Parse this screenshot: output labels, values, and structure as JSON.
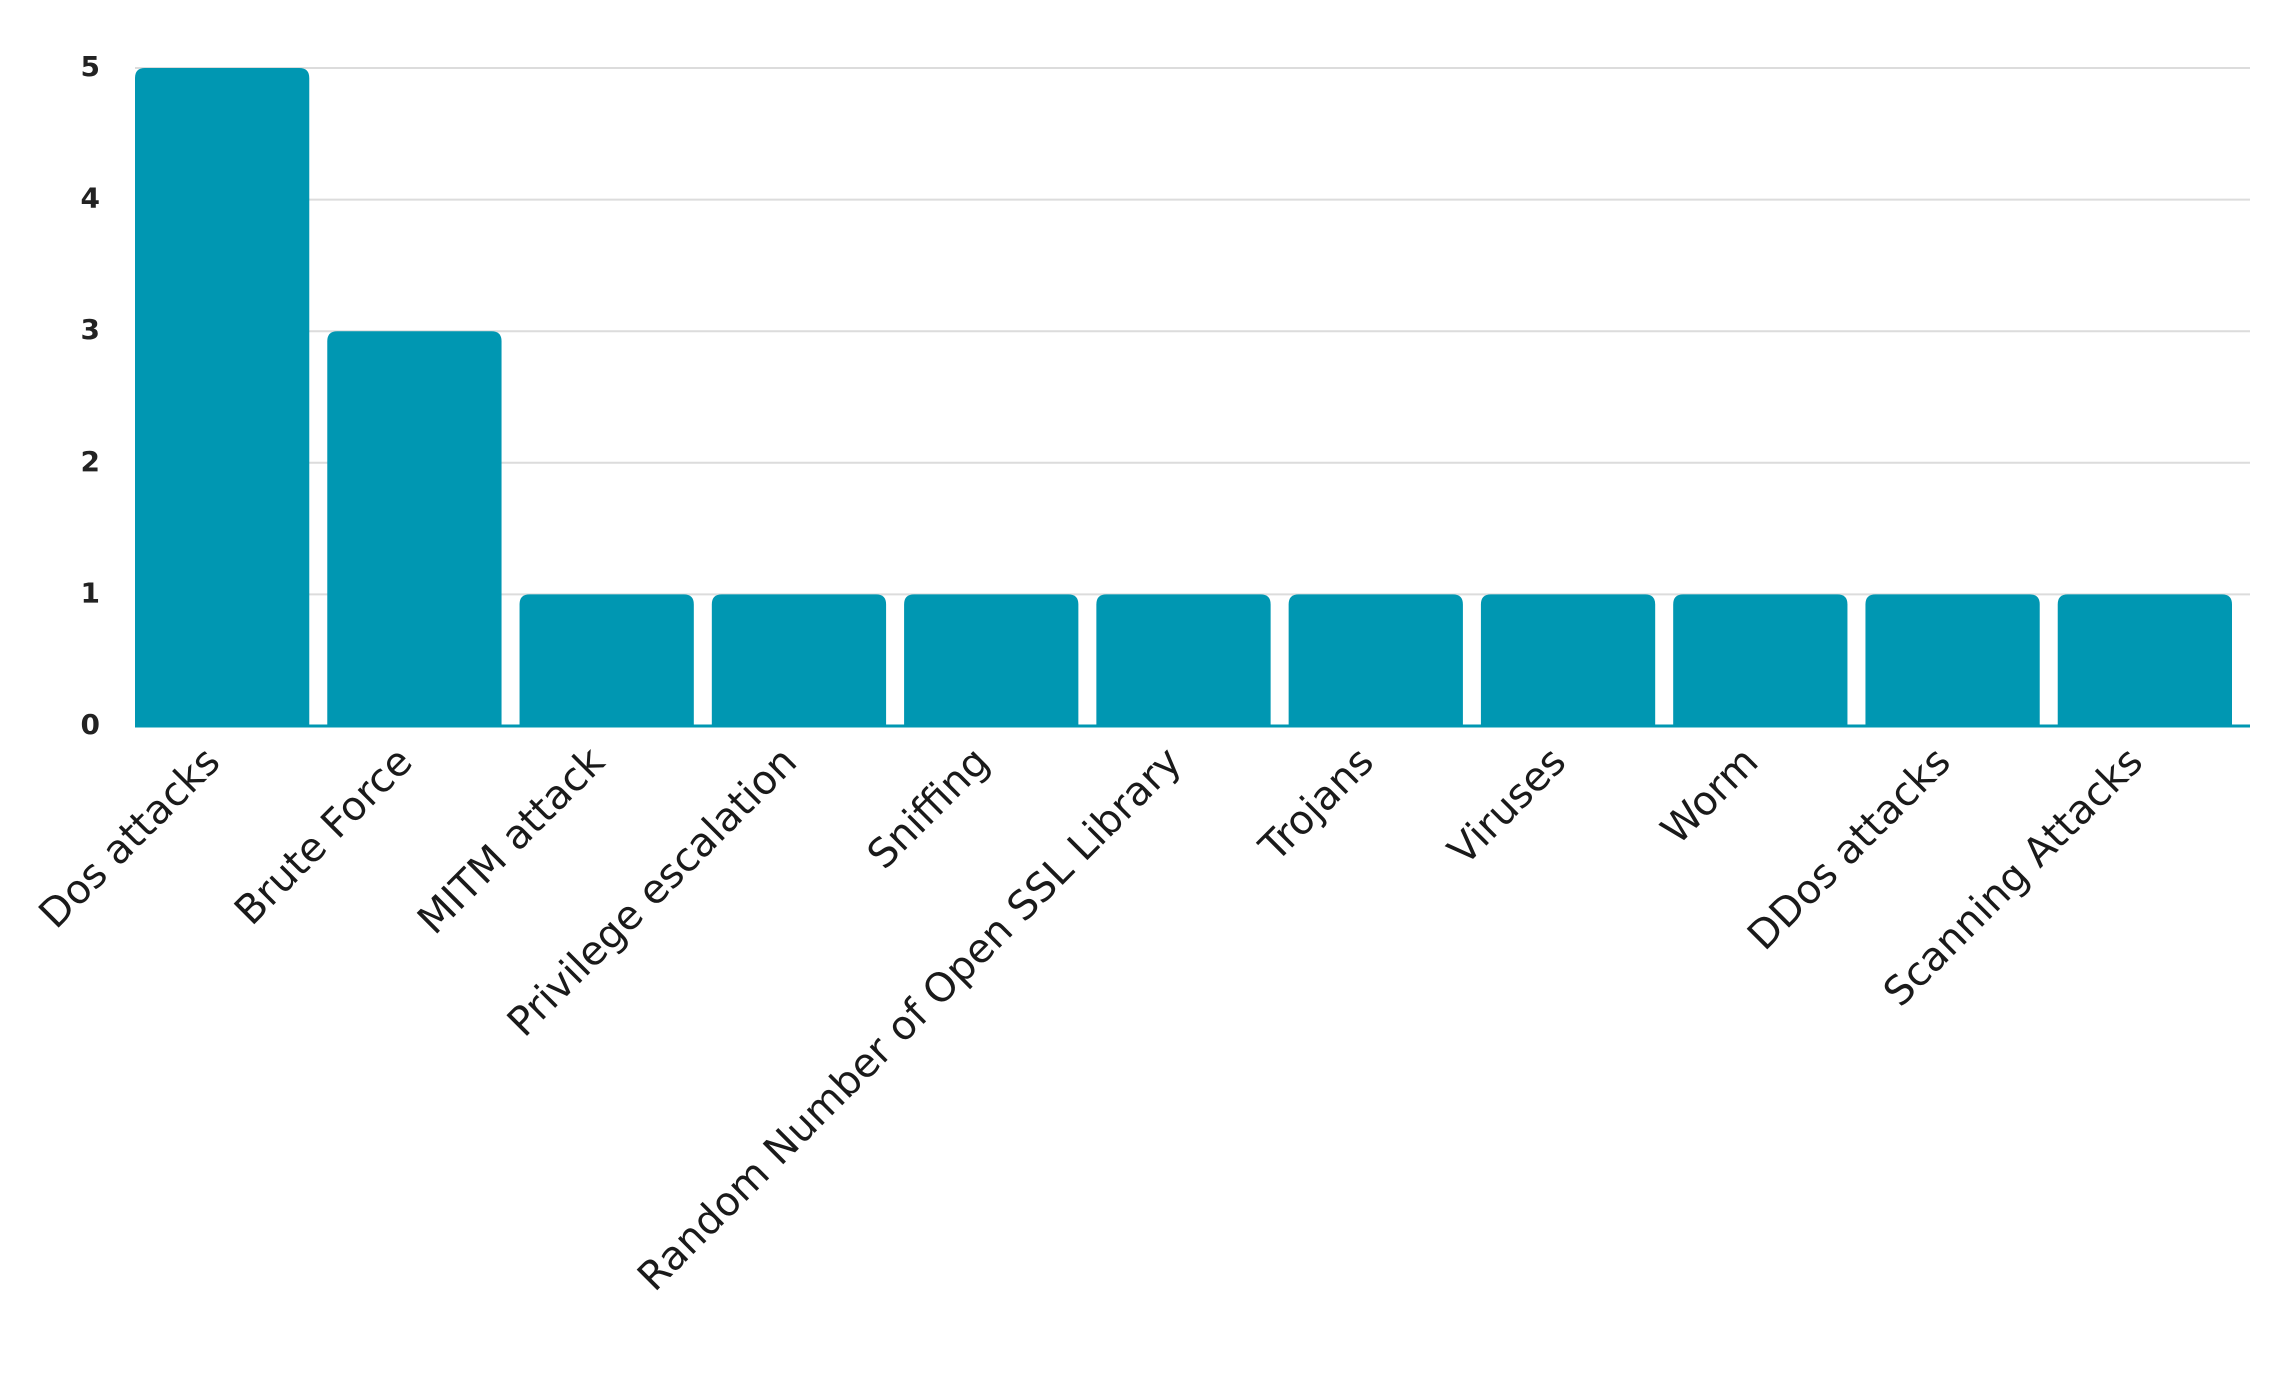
{
  "chart_data": {
    "type": "bar",
    "categories": [
      "Dos attacks",
      "Brute Force",
      "MITM attack",
      "Privilege escalation",
      "Sniffing",
      "Random Number of Open SSL Library",
      "Trojans",
      "Viruses",
      "Worm",
      "DDos attacks",
      "Scanning Attacks"
    ],
    "values": [
      5,
      3,
      1,
      1,
      1,
      1,
      1,
      1,
      1,
      1,
      1
    ],
    "yticks": [
      "0",
      "1",
      "2",
      "3",
      "4",
      "5"
    ],
    "ylim": [
      0,
      5
    ],
    "grid": true,
    "bar_color": "#0097b2",
    "title": "",
    "xlabel": "",
    "ylabel": ""
  }
}
